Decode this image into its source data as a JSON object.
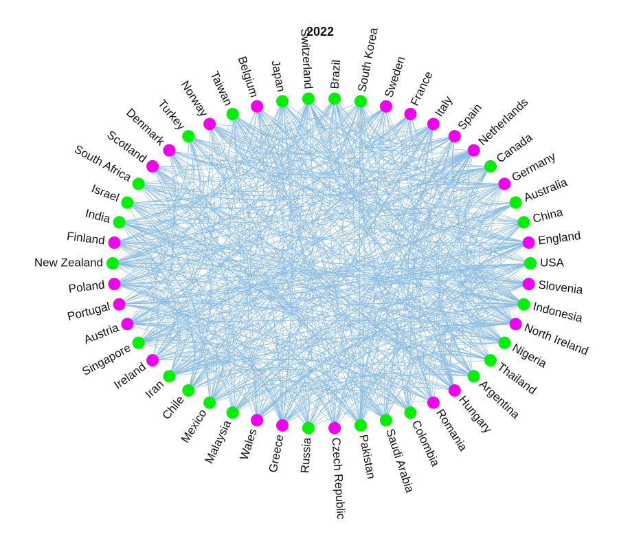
{
  "title": "2022",
  "nodes": [
    {
      "label": "USA",
      "color": "#00ee00"
    },
    {
      "label": "England",
      "color": "#ee00ee"
    },
    {
      "label": "China",
      "color": "#00ee00"
    },
    {
      "label": "Australia",
      "color": "#00ee00"
    },
    {
      "label": "Germany",
      "color": "#ee00ee"
    },
    {
      "label": "Canada",
      "color": "#00ee00"
    },
    {
      "label": "Netherlands",
      "color": "#ee00ee"
    },
    {
      "label": "Spain",
      "color": "#ee00ee"
    },
    {
      "label": "Italy",
      "color": "#ee00ee"
    },
    {
      "label": "France",
      "color": "#ee00ee"
    },
    {
      "label": "Sweden",
      "color": "#ee00ee"
    },
    {
      "label": "South Korea",
      "color": "#00ee00"
    },
    {
      "label": "Brazil",
      "color": "#00ee00"
    },
    {
      "label": "Switzerland",
      "color": "#00ee00"
    },
    {
      "label": "Japan",
      "color": "#00ee00"
    },
    {
      "label": "Belgium",
      "color": "#ee00ee"
    },
    {
      "label": "Taiwan",
      "color": "#00ee00"
    },
    {
      "label": "Norway",
      "color": "#ee00ee"
    },
    {
      "label": "Turkey",
      "color": "#00ee00"
    },
    {
      "label": "Denmark",
      "color": "#ee00ee"
    },
    {
      "label": "Scotland",
      "color": "#ee00ee"
    },
    {
      "label": "South Africa",
      "color": "#00ee00"
    },
    {
      "label": "Israel",
      "color": "#00ee00"
    },
    {
      "label": "India",
      "color": "#00ee00"
    },
    {
      "label": "Finland",
      "color": "#ee00ee"
    },
    {
      "label": "New Zealand",
      "color": "#00ee00"
    },
    {
      "label": "Poland",
      "color": "#ee00ee"
    },
    {
      "label": "Portugal",
      "color": "#ee00ee"
    },
    {
      "label": "Austria",
      "color": "#ee00ee"
    },
    {
      "label": "Singapore",
      "color": "#00ee00"
    },
    {
      "label": "Ireland",
      "color": "#ee00ee"
    },
    {
      "label": "Iran",
      "color": "#00ee00"
    },
    {
      "label": "Chile",
      "color": "#00ee00"
    },
    {
      "label": "Mexico",
      "color": "#00ee00"
    },
    {
      "label": "Malaysia",
      "color": "#00ee00"
    },
    {
      "label": "Wales",
      "color": "#ee00ee"
    },
    {
      "label": "Greece",
      "color": "#ee00ee"
    },
    {
      "label": "Russia",
      "color": "#00ee00"
    },
    {
      "label": "Czech Republic",
      "color": "#ee00ee"
    },
    {
      "label": "Pakistan",
      "color": "#00ee00"
    },
    {
      "label": "Saudi Arabia",
      "color": "#00ee00"
    },
    {
      "label": "Colombia",
      "color": "#00ee00"
    },
    {
      "label": "Romania",
      "color": "#ee00ee"
    },
    {
      "label": "Hungary",
      "color": "#ee00ee"
    },
    {
      "label": "Argentina",
      "color": "#00ee00"
    },
    {
      "label": "Thailand",
      "color": "#00ee00"
    },
    {
      "label": "Nigeria",
      "color": "#00ee00"
    },
    {
      "label": "North Ireland",
      "color": "#ee00ee"
    },
    {
      "label": "Indonesia",
      "color": "#00ee00"
    },
    {
      "label": "Slovenia",
      "color": "#ee00ee"
    }
  ]
}
